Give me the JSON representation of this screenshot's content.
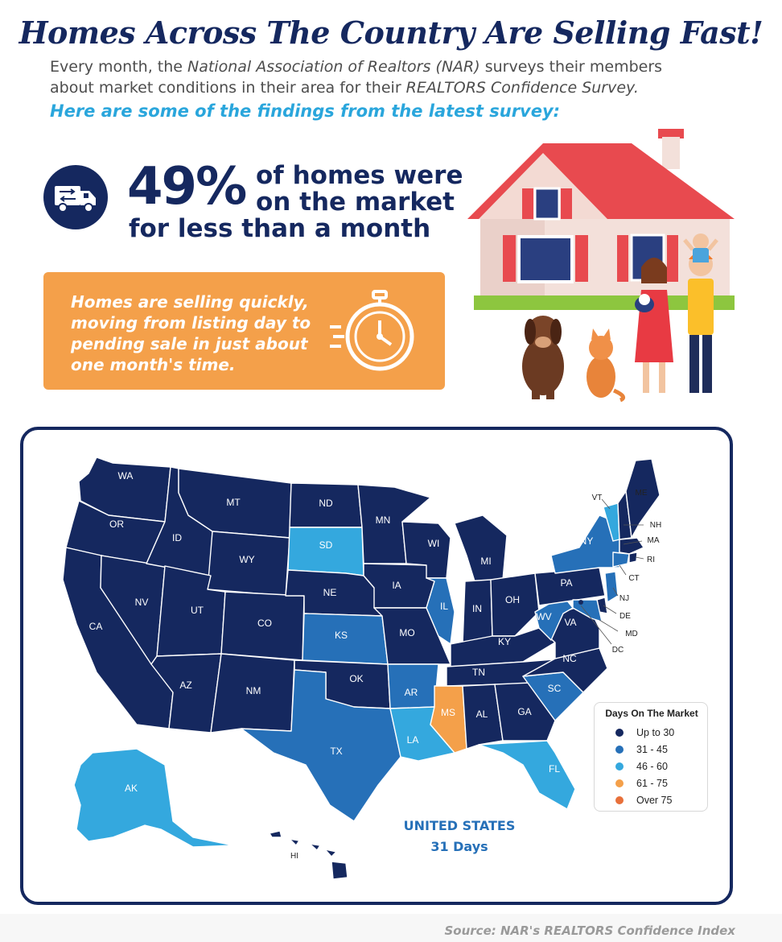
{
  "header": {
    "title": "Homes Across The Country Are Selling Fast!",
    "intro_l1_a": "Every month, the ",
    "intro_l1_b": "National Association of Realtors (NAR)",
    "intro_l1_c": " surveys their members",
    "intro_l2_a": "about market conditions in their area for their ",
    "intro_l2_b": "REALTORS Confidence Survey.",
    "findings": "Here are some of the findings from the latest survey:"
  },
  "stat": {
    "percent": "49%",
    "line1": "of homes were",
    "line2": "on the market",
    "line3": "for less than a month"
  },
  "callout": {
    "line1": "Homes are selling quickly,",
    "line2": "moving from listing day to",
    "line3": "pending sale in just about",
    "line4": "one month's time."
  },
  "icons": {
    "truck": "truck-icon",
    "stopwatch": "stopwatch-icon",
    "house": "house-family-illustration"
  },
  "colors": {
    "navy": "#15285f",
    "mid_blue": "#2670b8",
    "light_blue": "#34a8de",
    "orange": "#f4a04a",
    "dark_orange": "#e8703a"
  },
  "map": {
    "states": {
      "WA": "WA",
      "OR": "OR",
      "CA": "CA",
      "NV": "NV",
      "ID": "ID",
      "MT": "MT",
      "WY": "WY",
      "UT": "UT",
      "AZ": "AZ",
      "CO": "CO",
      "NM": "NM",
      "ND": "ND",
      "SD": "SD",
      "NE": "NE",
      "KS": "KS",
      "OK": "OK",
      "TX": "TX",
      "MN": "MN",
      "IA": "IA",
      "MO": "MO",
      "AR": "AR",
      "LA": "LA",
      "WI": "WI",
      "IL": "IL",
      "MS": "MS",
      "MI": "MI",
      "IN": "IN",
      "OH": "OH",
      "KY": "KY",
      "TN": "TN",
      "AL": "AL",
      "GA": "GA",
      "FL": "FL",
      "SC": "SC",
      "NC": "NC",
      "VA": "VA",
      "WV": "WV",
      "PA": "PA",
      "NY": "NY",
      "VT": "VT",
      "ME": "ME",
      "NH": "NH",
      "MA": "MA",
      "RI": "RI",
      "CT": "CT",
      "NJ": "NJ",
      "DE": "DE",
      "MD": "MD",
      "DC": "DC",
      "AK": "AK",
      "HI": "HI"
    },
    "legend": {
      "title": "Days On The Market",
      "items": [
        {
          "label": "Up to 30",
          "color": "#15285f"
        },
        {
          "label": "31 - 45",
          "color": "#2670b8"
        },
        {
          "label": "46 - 60",
          "color": "#34a8de"
        },
        {
          "label": "61 - 75",
          "color": "#f4a04a"
        },
        {
          "label": "Over 75",
          "color": "#e8703a"
        }
      ]
    },
    "national_name": "UNITED STATES",
    "national_days": "31 Days"
  },
  "footer": {
    "source": "Source: NAR's REALTORS Confidence Index"
  }
}
